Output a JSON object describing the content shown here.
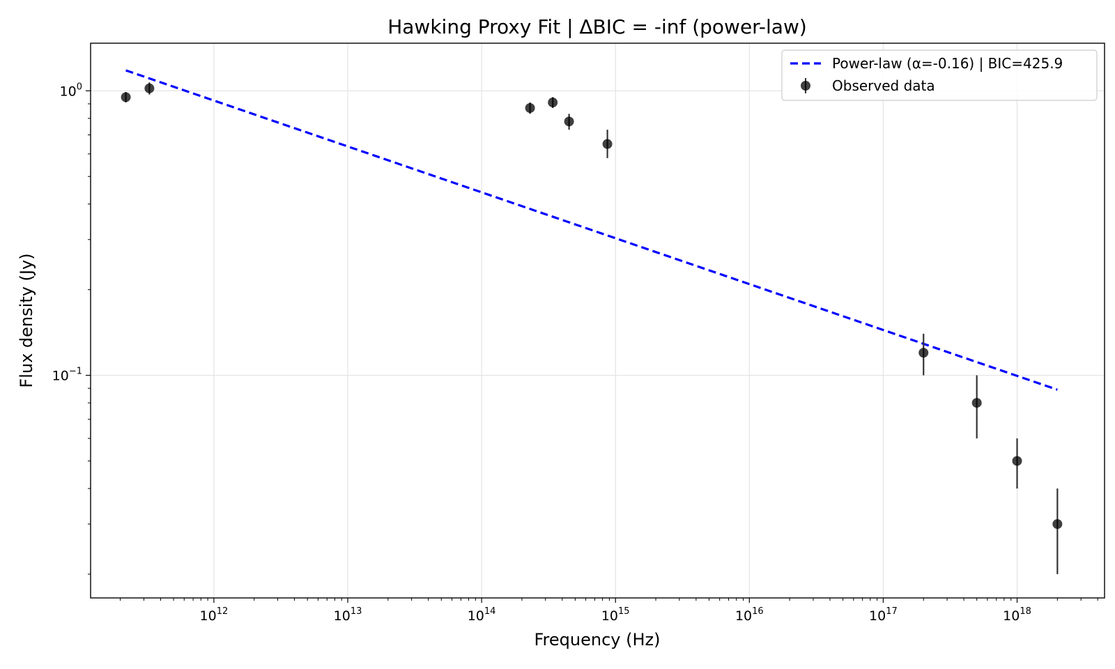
{
  "chart_data": {
    "type": "scatter",
    "title": "Hawking Proxy Fit | ΔBIC = -inf (power-law)",
    "xlabel": "Frequency (Hz)",
    "ylabel": "Flux density (Jy)",
    "xscale": "log",
    "yscale": "log",
    "xlim": [
      120000000000.0,
      4.5e+18
    ],
    "ylim": [
      0.0165,
      1.47
    ],
    "grid": true,
    "legend_position": "top-right",
    "x_ticks": [
      {
        "base": "10",
        "exp": "12",
        "value": 1000000000000.0
      },
      {
        "base": "10",
        "exp": "13",
        "value": 10000000000000.0
      },
      {
        "base": "10",
        "exp": "14",
        "value": 100000000000000.0
      },
      {
        "base": "10",
        "exp": "15",
        "value": 1000000000000000.0
      },
      {
        "base": "10",
        "exp": "16",
        "value": 1e+16
      },
      {
        "base": "10",
        "exp": "17",
        "value": 1e+17
      },
      {
        "base": "10",
        "exp": "18",
        "value": 1e+18
      }
    ],
    "y_ticks": [
      {
        "base": "10",
        "exp": "0",
        "value": 1.0
      },
      {
        "base": "10",
        "exp": "−1",
        "value": 0.1
      }
    ],
    "series": [
      {
        "name": "Power-law (α=-0.16) | BIC=425.9",
        "kind": "line",
        "style": "dashed",
        "color": "#0000ff",
        "x": [
          220000000000.0,
          2e+18
        ],
        "y": [
          1.18,
          0.089
        ]
      },
      {
        "name": "Observed data",
        "kind": "errorbar",
        "color": "#000000",
        "points": [
          {
            "x": 220000000000.0,
            "y": 0.95,
            "yerr_low": 0.04,
            "yerr_high": 0.04
          },
          {
            "x": 330000000000.0,
            "y": 1.02,
            "yerr_low": 0.05,
            "yerr_high": 0.05
          },
          {
            "x": 230000000000000.0,
            "y": 0.87,
            "yerr_low": 0.04,
            "yerr_high": 0.04
          },
          {
            "x": 340000000000000.0,
            "y": 0.91,
            "yerr_low": 0.04,
            "yerr_high": 0.04
          },
          {
            "x": 450000000000000.0,
            "y": 0.78,
            "yerr_low": 0.05,
            "yerr_high": 0.05
          },
          {
            "x": 870000000000000.0,
            "y": 0.65,
            "yerr_low": 0.07,
            "yerr_high": 0.08
          },
          {
            "x": 2e+17,
            "y": 0.12,
            "yerr_low": 0.02,
            "yerr_high": 0.02
          },
          {
            "x": 5e+17,
            "y": 0.08,
            "yerr_low": 0.02,
            "yerr_high": 0.02
          },
          {
            "x": 1e+18,
            "y": 0.05,
            "yerr_low": 0.01,
            "yerr_high": 0.01
          },
          {
            "x": 2e+18,
            "y": 0.03,
            "yerr_low": 0.01,
            "yerr_high": 0.01
          }
        ]
      }
    ]
  }
}
